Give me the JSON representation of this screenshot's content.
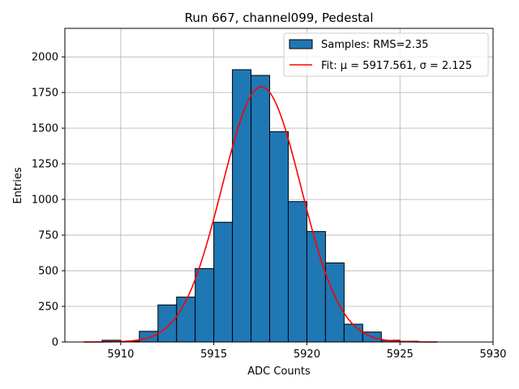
{
  "chart_data": {
    "type": "bar",
    "title": "Run 667, channel099, Pedestal",
    "xlabel": "ADC Counts",
    "ylabel": "Entries",
    "xlim": [
      5907,
      5930
    ],
    "ylim": [
      0,
      2200
    ],
    "x_ticks": [
      5910,
      5915,
      5920,
      5925,
      5930
    ],
    "y_ticks": [
      0,
      250,
      500,
      750,
      1000,
      1250,
      1500,
      1750,
      2000
    ],
    "grid": true,
    "legend_position": "top-right",
    "bin_width": 1,
    "bins": [
      {
        "left": 5909,
        "count": 12
      },
      {
        "left": 5910,
        "count": 5
      },
      {
        "left": 5911,
        "count": 75
      },
      {
        "left": 5912,
        "count": 260
      },
      {
        "left": 5913,
        "count": 315
      },
      {
        "left": 5914,
        "count": 515
      },
      {
        "left": 5915,
        "count": 840
      },
      {
        "left": 5916,
        "count": 1910
      },
      {
        "left": 5917,
        "count": 1870
      },
      {
        "left": 5918,
        "count": 1475
      },
      {
        "left": 5919,
        "count": 985
      },
      {
        "left": 5920,
        "count": 775
      },
      {
        "left": 5921,
        "count": 555
      },
      {
        "left": 5922,
        "count": 125
      },
      {
        "left": 5923,
        "count": 70
      },
      {
        "left": 5924,
        "count": 12
      },
      {
        "left": 5925,
        "count": 5
      }
    ],
    "fit": {
      "type": "gaussian",
      "mu": 5917.561,
      "sigma": 2.125,
      "amplitude": 1790,
      "x_range": [
        5908,
        5927
      ]
    },
    "series": [
      {
        "name": "Samples: RMS=2.35",
        "kind": "histogram",
        "color": "#1f77b4"
      },
      {
        "name": "Fit: μ = 5917.561, σ = 2.125",
        "kind": "line",
        "color": "#ff0000"
      }
    ]
  }
}
